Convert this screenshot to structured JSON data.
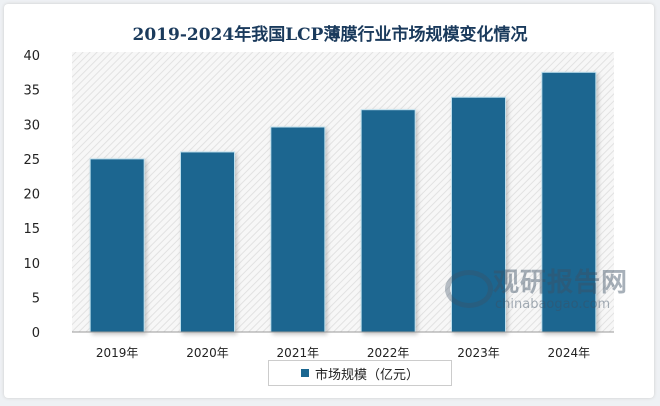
{
  "chart_data": {
    "type": "bar",
    "title": "2019-2024年我国LCP薄膜行业市场规模变化情况",
    "categories": [
      "2019年",
      "2020年",
      "2021年",
      "2022年",
      "2023年",
      "2024年"
    ],
    "series": [
      {
        "name": "市场规模（亿元）",
        "values": [
          25.0,
          26.0,
          29.6,
          32.1,
          33.9,
          37.5
        ]
      }
    ],
    "ylim": [
      0,
      40
    ],
    "yticks": [
      0,
      5,
      10,
      15,
      20,
      25,
      30,
      35,
      40
    ],
    "xlabel": "",
    "ylabel": "",
    "legend": "bottom",
    "grid": false,
    "bar_color": "#1a6690"
  },
  "watermark": {
    "cn": "观研报告网",
    "en": "chinabaogao.com"
  }
}
